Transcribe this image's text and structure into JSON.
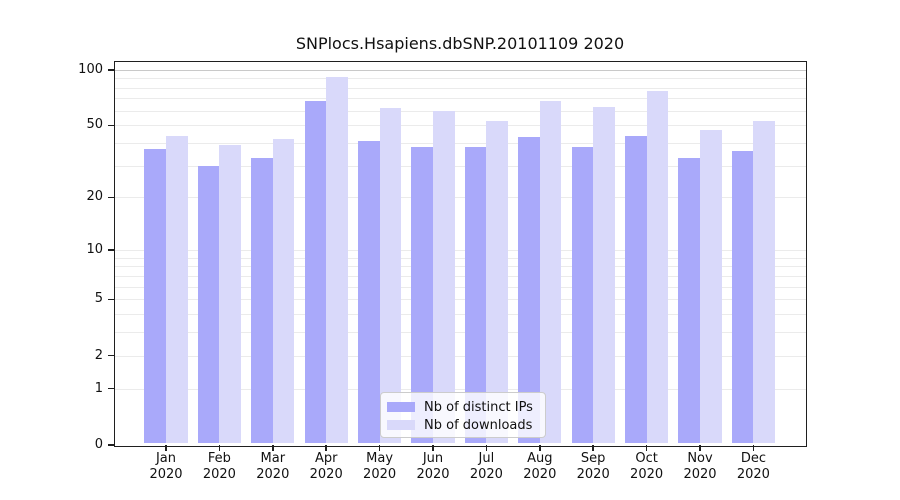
{
  "title": "SNPlocs.Hsapiens.dbSNP.20101109 2020",
  "colors": {
    "distinct_ips_bar": "#a9a9fa",
    "downloads_bar": "#d9d9fa",
    "gridline_minor": "#ebebeb",
    "gridline_top": "#c9c9c9",
    "axis": "#1f1f1f",
    "background": "#ffffff"
  },
  "legend": {
    "items": [
      {
        "label": "Nb of distinct IPs"
      },
      {
        "label": "Nb of downloads"
      }
    ]
  },
  "chart_data": {
    "type": "bar",
    "title": "SNPlocs.Hsapiens.dbSNP.20101109 2020",
    "categories": [
      "Jan",
      "Feb",
      "Mar",
      "Apr",
      "May",
      "Jun",
      "Jul",
      "Aug",
      "Sep",
      "Oct",
      "Nov",
      "Dec"
    ],
    "x_tick_second_line": "2020",
    "series": [
      {
        "name": "Nb of distinct IPs",
        "color": "#a9a9fa",
        "values": [
          37,
          30,
          33,
          68,
          41,
          38,
          38,
          43,
          38,
          44,
          33,
          36
        ]
      },
      {
        "name": "Nb of downloads",
        "color": "#d9d9fa",
        "values": [
          44,
          39,
          42,
          91,
          62,
          60,
          53,
          68,
          63,
          77,
          47,
          53
        ]
      }
    ],
    "xlabel": "",
    "ylabel": "",
    "yscale": "log1p",
    "ylim": [
      0,
      110
    ],
    "yticks": [
      100,
      50,
      20,
      10,
      5,
      2,
      1,
      0
    ],
    "grid_values": [
      1,
      2,
      3,
      4,
      5,
      6,
      7,
      8,
      9,
      10,
      20,
      30,
      40,
      50,
      60,
      70,
      80,
      90,
      100
    ],
    "grid": true,
    "legend_position": "inside-bottom-center"
  }
}
